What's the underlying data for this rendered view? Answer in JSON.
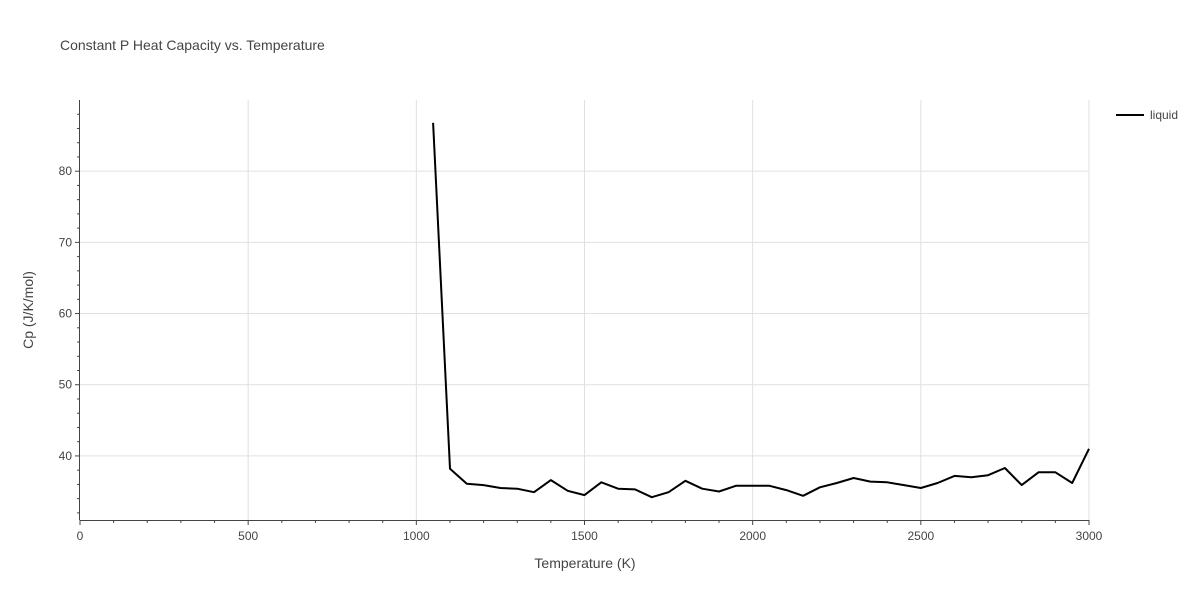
{
  "chart_data": {
    "type": "line",
    "title": "Constant P Heat Capacity vs. Temperature",
    "xlabel": "Temperature (K)",
    "ylabel": "Cp (J/K/mol)",
    "xlim": [
      0,
      3000
    ],
    "ylim": [
      31,
      90
    ],
    "xticks": [
      0,
      500,
      1000,
      1500,
      2000,
      2500,
      3000
    ],
    "yticks": [
      40,
      50,
      60,
      70,
      80
    ],
    "grid": true,
    "legend_position": "top-right",
    "series": [
      {
        "name": "liquid",
        "color": "#000000",
        "x": [
          1050,
          1100,
          1150,
          1200,
          1250,
          1300,
          1350,
          1400,
          1450,
          1500,
          1550,
          1600,
          1650,
          1700,
          1750,
          1800,
          1850,
          1900,
          1950,
          2000,
          2050,
          2100,
          2150,
          2200,
          2250,
          2300,
          2350,
          2400,
          2450,
          2500,
          2550,
          2600,
          2650,
          2700,
          2750,
          2800,
          2850,
          2900,
          2950,
          3000
        ],
        "y": [
          86.8,
          38.2,
          36.1,
          35.9,
          35.5,
          35.4,
          34.9,
          36.6,
          35.1,
          34.5,
          36.3,
          35.4,
          35.3,
          34.2,
          34.9,
          36.5,
          35.4,
          35.0,
          35.8,
          35.8,
          35.8,
          35.2,
          34.4,
          35.6,
          36.2,
          36.9,
          36.4,
          36.3,
          35.9,
          35.5,
          36.2,
          37.2,
          37.0,
          37.3,
          38.3,
          35.9,
          37.7,
          37.7,
          36.2,
          41.0
        ]
      }
    ]
  }
}
